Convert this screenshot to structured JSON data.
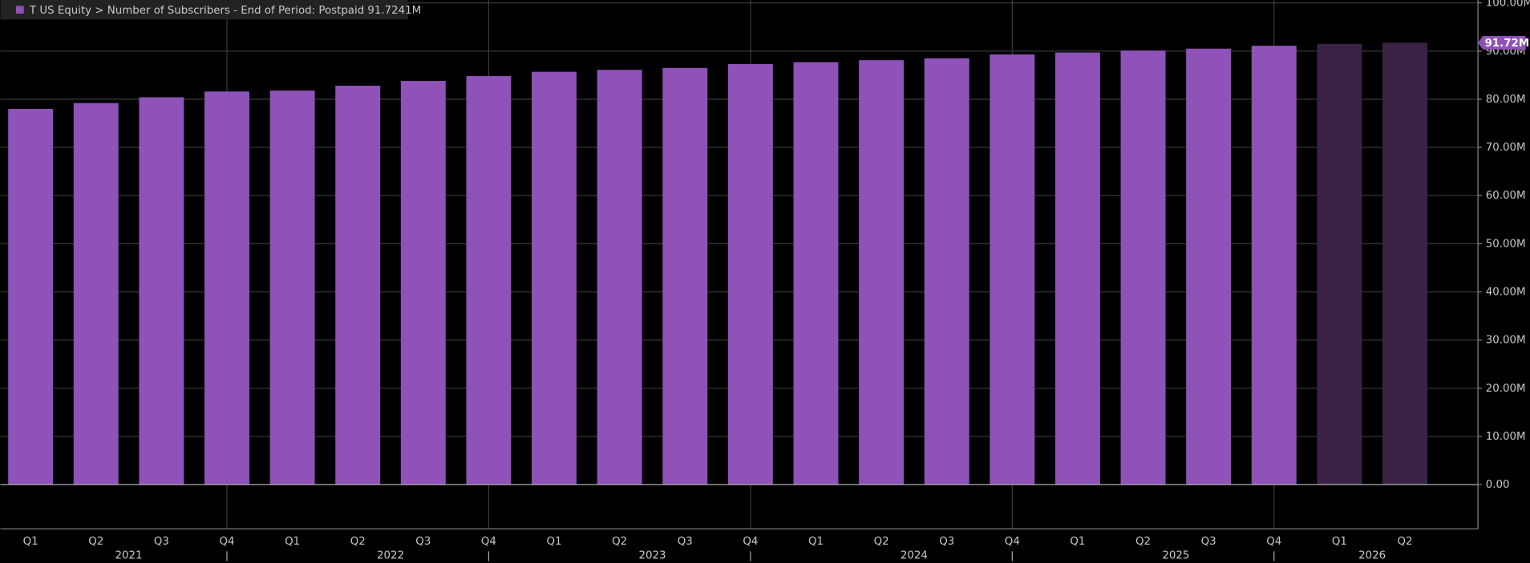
{
  "chart_data": {
    "type": "bar",
    "legend": "T US Equity > Number of Subscribers - End of Period: Postpaid 91.7241M",
    "last_value_label": "91.72M",
    "categories": [
      "Q1",
      "Q2",
      "Q3",
      "Q4",
      "Q1",
      "Q2",
      "Q3",
      "Q4",
      "Q1",
      "Q2",
      "Q3",
      "Q4",
      "Q1",
      "Q2",
      "Q3",
      "Q4",
      "Q1",
      "Q2",
      "Q3",
      "Q4",
      "Q1",
      "Q2"
    ],
    "years": [
      "2021",
      "2022",
      "2023",
      "2024",
      "2025",
      "2026"
    ],
    "values": [
      78.0,
      79.2,
      80.4,
      81.6,
      81.8,
      82.8,
      83.8,
      84.8,
      85.7,
      86.1,
      86.5,
      87.3,
      87.7,
      88.1,
      88.5,
      89.3,
      89.7,
      90.1,
      90.5,
      91.1,
      91.5,
      91.7241
    ],
    "color": "#8e52b8",
    "forecast_color": "#3b2346",
    "bar_colors": [
      "#8e52b8",
      "#8e52b8",
      "#8e52b8",
      "#8e52b8",
      "#8e52b8",
      "#8e52b8",
      "#8e52b8",
      "#8e52b8",
      "#8e52b8",
      "#8e52b8",
      "#8e52b8",
      "#8e52b8",
      "#8e52b8",
      "#8e52b8",
      "#8e52b8",
      "#8e52b8",
      "#8e52b8",
      "#8e52b8",
      "#8e52b8",
      "#8e52b8",
      "#3b2346",
      "#3b2346"
    ],
    "ylim": [
      -9.2,
      100.6
    ],
    "yticks": [
      {
        "value": 0,
        "label": "0.00"
      },
      {
        "value": 10,
        "label": "10.00M"
      },
      {
        "value": 20,
        "label": "20.00M"
      },
      {
        "value": 30,
        "label": "30.00M"
      },
      {
        "value": 40,
        "label": "40.00M"
      },
      {
        "value": 50,
        "label": "50.00M"
      },
      {
        "value": 60,
        "label": "60.00M"
      },
      {
        "value": 70,
        "label": "70.00M"
      },
      {
        "value": 80,
        "label": "80.00M"
      },
      {
        "value": 90,
        "label": "90.00M"
      },
      {
        "value": 100,
        "label": "100.00M"
      }
    ],
    "grid": true
  }
}
